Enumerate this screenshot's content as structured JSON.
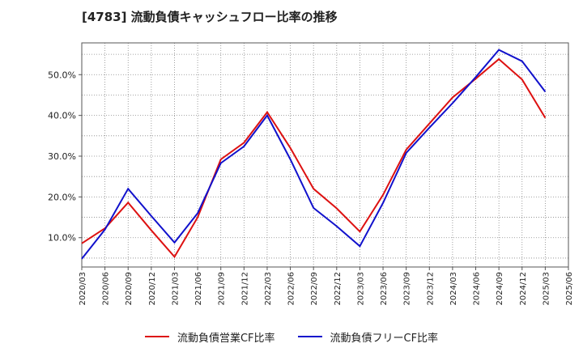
{
  "chart_data": {
    "type": "line",
    "title": "[4783]  流動負債キャッシュフロー比率の推移",
    "xlabel": "",
    "ylabel": "",
    "ylim": [
      2.8,
      57.8
    ],
    "yticks": [
      10,
      20,
      30,
      40,
      50
    ],
    "ytick_labels": [
      "10.0%",
      "20.0%",
      "30.0%",
      "40.0%",
      "50.0%"
    ],
    "categories": [
      "2020/03",
      "2020/06",
      "2020/09",
      "2020/12",
      "2021/03",
      "2021/06",
      "2021/09",
      "2021/12",
      "2022/03",
      "2022/06",
      "2022/09",
      "2022/12",
      "2023/03",
      "2023/06",
      "2023/09",
      "2023/12",
      "2024/03",
      "2024/06",
      "2024/09",
      "2024/12",
      "2025/03",
      "2025/06"
    ],
    "grid": true,
    "legend_position": "bottom",
    "series": [
      {
        "name": "流動負債営業CF比率",
        "color": "#dd1111",
        "values": [
          8.6,
          12.3,
          18.6,
          11.8,
          5.3,
          15.0,
          29.2,
          33.3,
          40.8,
          32.0,
          22.0,
          17.2,
          11.5,
          20.5,
          31.6,
          38.0,
          44.4,
          49.0,
          53.8,
          48.8,
          39.4,
          null
        ]
      },
      {
        "name": "流動負債フリーCF比率",
        "color": "#1111cc",
        "values": [
          4.8,
          12.0,
          22.0,
          15.3,
          8.8,
          16.0,
          28.3,
          32.4,
          40.0,
          29.2,
          17.3,
          12.8,
          7.9,
          18.5,
          30.8,
          37.0,
          43.0,
          49.4,
          56.1,
          53.3,
          45.8,
          null
        ]
      }
    ]
  }
}
